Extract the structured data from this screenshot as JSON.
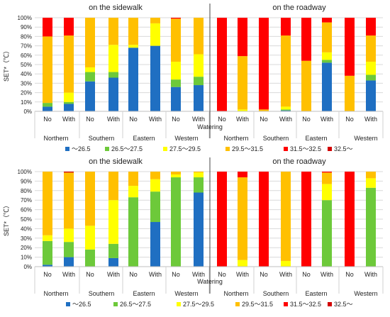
{
  "legend_labels": [
    "～26.5",
    "26.5～27.5",
    "27.5～29.5",
    "29.5～31.5",
    "31.5～32.5",
    "32.5～"
  ],
  "colors": [
    "#1f6fc2",
    "#6dc93a",
    "#ffff00",
    "#ffc000",
    "#ff0000",
    "#d20000"
  ],
  "chart_data": [
    {
      "type": "bar",
      "stacked": true,
      "section_titles": [
        "on the sidewalk",
        "on the roadway"
      ],
      "ylabel": "SET*（℃）",
      "xlabel": "Watering",
      "ylim": [
        0,
        100
      ],
      "yticks": [
        "0%",
        "10%",
        "20%",
        "30%",
        "40%",
        "50%",
        "60%",
        "70%",
        "80%",
        "90%",
        "100%"
      ],
      "categories": [
        "No",
        "With",
        "No",
        "With",
        "No",
        "With",
        "No",
        "With",
        "No",
        "With",
        "No",
        "With",
        "No",
        "With",
        "No",
        "With"
      ],
      "groups": [
        "Northern",
        "Southern",
        "Eastern",
        "Western",
        "Northern",
        "Southern",
        "Eastern",
        "Western"
      ],
      "series": [
        {
          "name": "～26.5",
          "values": [
            5,
            8,
            32,
            36,
            68,
            70,
            26,
            28,
            0,
            0,
            0,
            1,
            0,
            52,
            0,
            33
          ]
        },
        {
          "name": "26.5～27.5",
          "values": [
            4,
            2,
            10,
            6,
            0,
            0,
            8,
            9,
            0,
            0,
            0,
            1,
            0,
            3,
            0,
            6
          ]
        },
        {
          "name": "27.5～29.5",
          "values": [
            0,
            10,
            5,
            29,
            3,
            24,
            19,
            24,
            0,
            2,
            0,
            3,
            0,
            8,
            0,
            14
          ]
        },
        {
          "name": "29.5～31.5",
          "values": [
            71,
            61,
            53,
            29,
            29,
            6,
            46,
            39,
            0,
            57,
            2,
            76,
            54,
            32,
            38,
            28
          ]
        },
        {
          "name": "31.5～32.5",
          "values": [
            20,
            19,
            0,
            0,
            0,
            0,
            1,
            0,
            100,
            41,
            98,
            19,
            46,
            5,
            62,
            19
          ]
        },
        {
          "name": "32.5～",
          "values": [
            0,
            0,
            0,
            0,
            0,
            0,
            0,
            0,
            0,
            0,
            0,
            0,
            0,
            0,
            0,
            0
          ]
        }
      ]
    },
    {
      "type": "bar",
      "stacked": true,
      "section_titles": [
        "on the sidewalk",
        "on the roadway"
      ],
      "ylabel": "SET*（℃）",
      "xlabel": "Watering",
      "ylim": [
        0,
        100
      ],
      "yticks": [
        "0%",
        "10%",
        "20%",
        "30%",
        "40%",
        "50%",
        "60%",
        "70%",
        "80%",
        "90%",
        "100%"
      ],
      "categories": [
        "No",
        "With",
        "No",
        "With",
        "No",
        "With",
        "No",
        "With",
        "No",
        "With",
        "No",
        "With",
        "No",
        "With",
        "No",
        "With"
      ],
      "groups": [
        "Northern",
        "Southern",
        "Eastern",
        "Western",
        "Northern",
        "Southern",
        "Eastern",
        "Western"
      ],
      "series": [
        {
          "name": "～26.5",
          "values": [
            2,
            10,
            0,
            9,
            0,
            47,
            0,
            78,
            0,
            0,
            0,
            0,
            0,
            0,
            0,
            0
          ]
        },
        {
          "name": "26.5～27.5",
          "values": [
            25,
            16,
            18,
            15,
            73,
            32,
            94,
            16,
            0,
            0,
            0,
            0,
            0,
            70,
            0,
            83
          ]
        },
        {
          "name": "27.5～29.5",
          "values": [
            6,
            14,
            25,
            46,
            12,
            13,
            3,
            5,
            0,
            7,
            0,
            6,
            0,
            17,
            0,
            10
          ]
        },
        {
          "name": "29.5～31.5",
          "values": [
            67,
            59,
            57,
            30,
            15,
            8,
            3,
            1,
            0,
            87,
            0,
            94,
            0,
            12,
            0,
            7
          ]
        },
        {
          "name": "31.5～32.5",
          "values": [
            0,
            0,
            0,
            0,
            0,
            0,
            0,
            0,
            100,
            6,
            100,
            0,
            100,
            1,
            100,
            0
          ]
        },
        {
          "name": "32.5～",
          "values": [
            0,
            1,
            0,
            0,
            0,
            0,
            0,
            0,
            0,
            0,
            0,
            0,
            0,
            0,
            0,
            0
          ]
        }
      ]
    }
  ]
}
